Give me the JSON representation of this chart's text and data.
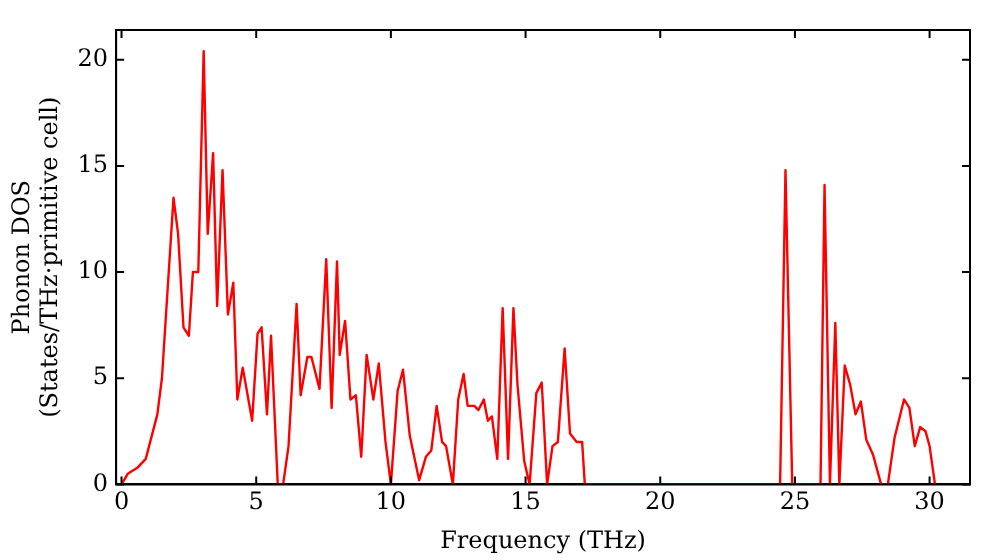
{
  "chart_data": {
    "type": "line",
    "xlabel": "Frequency (THz)",
    "ylabel": "Phonon DOS\n(States/THz·primitive cell)",
    "xlim": [
      -0.2,
      31.5
    ],
    "ylim": [
      0,
      21.4
    ],
    "xticks": [
      0,
      5,
      10,
      15,
      20,
      25,
      30
    ],
    "yticks": [
      0,
      5,
      10,
      15,
      20
    ],
    "legend": false,
    "marker": "none",
    "line_style": "solid",
    "series": [
      {
        "color": "#ff0000",
        "x": [
          0,
          0.23,
          0.6,
          0.9,
          1.33,
          1.5,
          1.93,
          2.1,
          2.3,
          2.5,
          2.65,
          2.85,
          3.05,
          3.2,
          3.4,
          3.55,
          3.75,
          3.95,
          4.15,
          4.3,
          4.5,
          4.85,
          5.05,
          5.2,
          5.4,
          5.55,
          5.8,
          6.0,
          6.2,
          6.5,
          6.65,
          6.9,
          7.05,
          7.35,
          7.6,
          7.8,
          8.0,
          8.1,
          8.3,
          8.5,
          8.7,
          8.9,
          9.1,
          9.35,
          9.55,
          9.8,
          10.0,
          10.25,
          10.45,
          10.7,
          11.05,
          11.3,
          11.5,
          11.7,
          11.9,
          12.05,
          12.3,
          12.5,
          12.7,
          12.85,
          13.1,
          13.25,
          13.45,
          13.6,
          13.75,
          13.95,
          14.15,
          14.35,
          14.55,
          14.7,
          14.95,
          15.15,
          15.4,
          15.6,
          15.8,
          16.0,
          16.2,
          16.45,
          16.65,
          16.9,
          17.1,
          17.2,
          24.45,
          24.65,
          24.9,
          25.95,
          26.1,
          26.3,
          26.5,
          26.65,
          26.85,
          27.05,
          27.25,
          27.45,
          27.65,
          27.9,
          28.2,
          28.45,
          28.7,
          29.05,
          29.25,
          29.45,
          29.65,
          29.85,
          30.0,
          30.2
        ],
        "values": [
          0,
          0.5,
          0.8,
          1.2,
          3.3,
          5,
          13.5,
          11.8,
          7.4,
          7,
          10,
          10,
          20.4,
          11.8,
          15.6,
          8.4,
          14.8,
          8,
          9.5,
          4,
          5.5,
          3,
          7.1,
          7.4,
          3.3,
          7,
          0,
          0,
          1.8,
          8.5,
          4.2,
          6,
          6,
          4.5,
          10.6,
          3.6,
          10.5,
          6.1,
          7.7,
          4,
          4.2,
          1.3,
          6.1,
          4,
          5.7,
          2,
          0,
          4.4,
          5.4,
          2.3,
          0.2,
          1.3,
          1.6,
          3.7,
          2,
          1.8,
          0,
          4,
          5.2,
          3.7,
          3.7,
          3.5,
          4,
          3,
          3.2,
          1.2,
          8.3,
          1.2,
          8.3,
          4.7,
          1.1,
          0,
          4.3,
          4.8,
          0,
          1.8,
          2,
          6.4,
          2.4,
          2,
          2,
          0,
          0,
          14.8,
          0,
          0,
          14.1,
          0,
          7.6,
          0,
          5.6,
          4.7,
          3.3,
          3.9,
          2.1,
          1.4,
          0,
          0,
          2.2,
          4,
          3.6,
          1.8,
          2.7,
          2.5,
          1.8,
          0
        ]
      }
    ]
  }
}
